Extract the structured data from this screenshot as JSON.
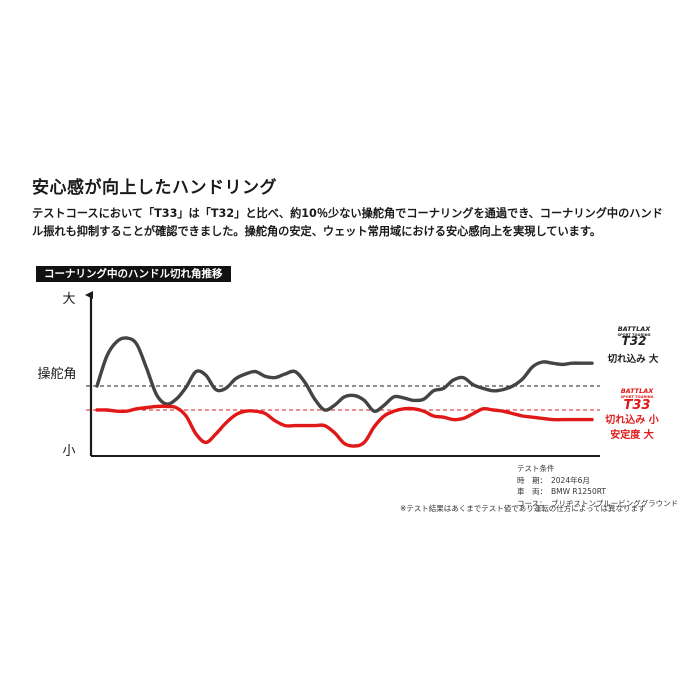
{
  "heading": "安心感が向上したハンドリング",
  "lead": "テストコースにおいて「T33」は「T32」と比べ、約10％少ない操舵角でコーナリングを通過でき、コーナリング中のハンドル振れも抑制することが確認できました。操舵角の安定、ウェット常用域における安心感向上を実現しています。",
  "chart_data": {
    "type": "line",
    "title": "コーナリング中のハンドル切れ角推移",
    "ylabel": "操舵角",
    "y_max_label": "大",
    "y_min_label": "小",
    "ylim": [
      0,
      100
    ],
    "x": [
      0,
      2,
      4,
      6,
      8,
      10,
      12,
      14,
      16,
      18,
      20,
      22,
      24,
      26,
      28,
      30,
      32,
      34,
      36,
      38,
      40,
      42,
      44,
      46,
      48,
      50,
      52,
      54,
      56,
      58,
      60,
      62,
      64,
      66,
      68,
      70,
      72,
      74,
      76,
      78,
      80,
      82,
      84,
      86,
      88,
      90,
      92,
      94,
      96,
      98,
      100
    ],
    "series": [
      {
        "name": "T32",
        "brand": "BATTLAX",
        "line": "SPORT TOURING",
        "color": "#444444",
        "values": [
          45,
          70,
          82,
          85,
          80,
          60,
          38,
          30,
          34,
          44,
          57,
          54,
          42,
          43,
          51,
          55,
          57,
          53,
          52,
          55,
          57,
          48,
          34,
          25,
          29,
          36,
          37,
          33,
          24,
          29,
          36,
          35,
          33,
          34,
          41,
          43,
          50,
          52,
          46,
          43,
          41,
          42,
          45,
          51,
          61,
          65,
          64,
          63,
          64,
          64,
          64
        ],
        "annotation": [
          "切れ込み 大"
        ]
      },
      {
        "name": "T33",
        "brand": "BATTLAX",
        "line": "SPORT TOURING",
        "color": "#e01818",
        "values": [
          25,
          25,
          24,
          24,
          26,
          27,
          28,
          28,
          27,
          20,
          5,
          -2,
          5,
          14,
          21,
          24,
          24,
          22,
          16,
          12,
          12,
          12,
          12,
          12,
          6,
          -3,
          -5,
          -2,
          11,
          20,
          24,
          26,
          26,
          24,
          20,
          19,
          17,
          18,
          22,
          26,
          25,
          24,
          22,
          20,
          19,
          18,
          17,
          17,
          17,
          17,
          17
        ],
        "annotation": [
          "切れ込み 小",
          "安定度 大"
        ]
      }
    ],
    "reference_lines": [
      {
        "name": "T32 baseline",
        "value": 45
      },
      {
        "name": "T33 baseline",
        "value": 25
      }
    ]
  },
  "conditions": {
    "title": "テスト条件",
    "rows": [
      {
        "label": "時　期：",
        "value": "2024年6月"
      },
      {
        "label": "車　両：",
        "value": "BMW R1250RT"
      },
      {
        "label": "コース：",
        "value": "ブリヂストンプルービンググラウンド"
      }
    ]
  },
  "note": "※テスト結果はあくまでテスト値であり運転の仕方によっては異なります",
  "colors": {
    "t32": "#444444",
    "t33": "#e01818",
    "axis": "#1a1a1a"
  }
}
